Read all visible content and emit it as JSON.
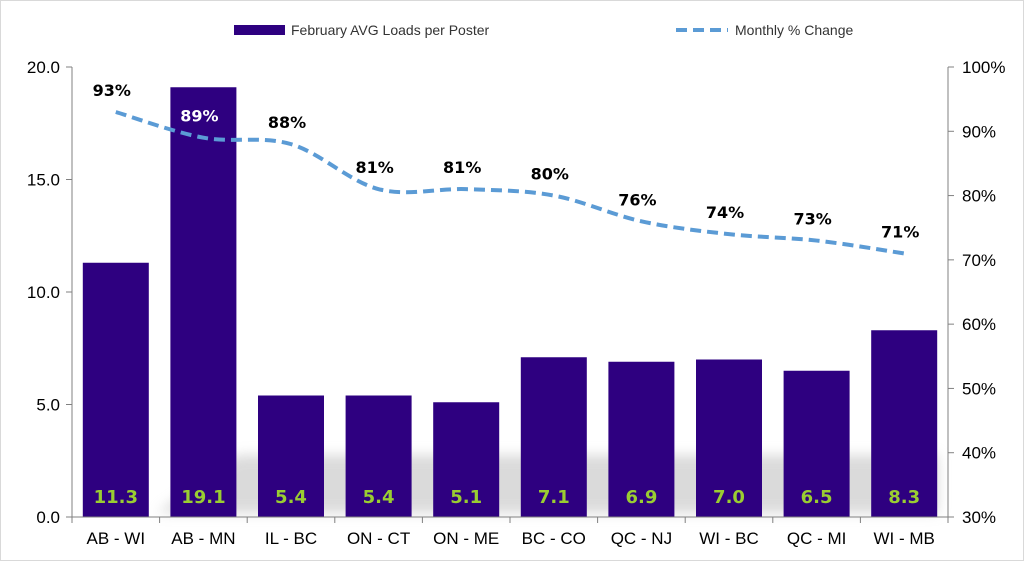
{
  "chart_data": {
    "type": "bar",
    "title": "",
    "xlabel": "",
    "ylabel": "",
    "categories": [
      "AB - WI",
      "AB - MN",
      "IL - BC",
      "ON - CT",
      "ON - ME",
      "BC - CO",
      "QC - NJ",
      "WI - BC",
      "QC - MI",
      "WI - MB"
    ],
    "series": [
      {
        "name": "February AVG Loads per Poster",
        "type": "bar",
        "axis": "left",
        "color": "#2e0080",
        "values": [
          11.3,
          19.1,
          5.4,
          5.4,
          5.1,
          7.1,
          6.9,
          7.0,
          6.5,
          8.3
        ],
        "labels": [
          "11.3",
          "19.1",
          "5.4",
          "5.4",
          "5.1",
          "7.1",
          "6.9",
          "7.0",
          "6.5",
          "8.3"
        ],
        "label_color": "#9acd32"
      },
      {
        "name": "Monthly % Change",
        "type": "line",
        "axis": "right",
        "style": "dashed",
        "color": "#5b9bd5",
        "values": [
          93,
          89,
          88,
          81,
          81,
          80,
          76,
          74,
          73,
          71
        ],
        "labels": [
          "93%",
          "89%",
          "88%",
          "81%",
          "81%",
          "80%",
          "76%",
          "74%",
          "73%",
          "71%"
        ]
      }
    ],
    "ylim": [
      0,
      20
    ],
    "yticks": [
      "0.0",
      "5.0",
      "10.0",
      "15.0",
      "20.0"
    ],
    "y2lim": [
      30,
      100
    ],
    "y2ticks": [
      "30%",
      "40%",
      "50%",
      "60%",
      "70%",
      "80%",
      "90%",
      "100%"
    ],
    "legend_position": "top-center",
    "grid": false
  }
}
